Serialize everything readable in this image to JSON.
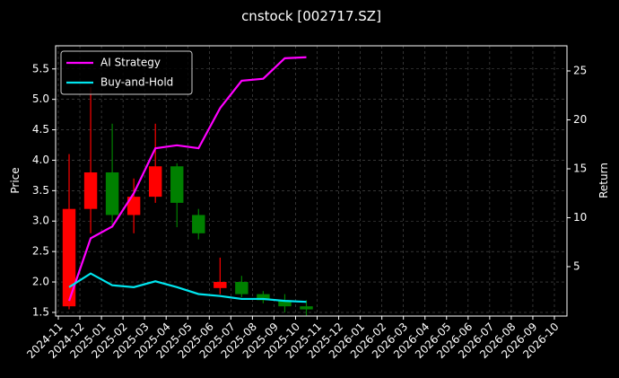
{
  "chart_data": {
    "type": "candlestick",
    "title": "cnstock [002717.SZ]",
    "ylabel": "Price",
    "y2label": "Return",
    "x": [
      "2024-11",
      "2024-12",
      "2025-01",
      "2025-02",
      "2025-03",
      "2025-04",
      "2025-05",
      "2025-06",
      "2025-07",
      "2025-08",
      "2025-09",
      "2025-10"
    ],
    "open": [
      1.6,
      3.2,
      3.8,
      3.1,
      3.4,
      3.9,
      3.1,
      1.9,
      2.0,
      1.8,
      1.7,
      1.6
    ],
    "high": [
      4.1,
      5.2,
      4.6,
      3.7,
      4.6,
      3.95,
      3.2,
      2.4,
      2.1,
      1.85,
      1.8,
      1.7
    ],
    "low": [
      1.55,
      2.8,
      2.9,
      2.8,
      3.3,
      2.9,
      2.7,
      1.8,
      1.75,
      1.65,
      1.5,
      1.45
    ],
    "close": [
      3.2,
      3.8,
      3.1,
      3.4,
      3.9,
      3.3,
      2.8,
      2.0,
      1.8,
      1.7,
      1.6,
      1.55
    ],
    "up_color": "#ff0000",
    "down_color": "#008000",
    "series": [
      {
        "name": "AI Strategy",
        "color": "#ff00ff",
        "axis": "y2",
        "values": [
          1.5,
          7.9,
          9.1,
          12.5,
          17.1,
          17.4,
          17.1,
          21.2,
          24.0,
          24.2,
          26.3,
          26.4
        ]
      },
      {
        "name": "Buy-and-Hold",
        "color": "#00e5ee",
        "axis": "y2",
        "values": [
          2.9,
          4.3,
          3.1,
          2.9,
          3.5,
          2.9,
          2.2,
          2.0,
          1.7,
          1.7,
          1.5,
          1.4
        ]
      }
    ],
    "xlim": [
      "2024-11",
      "2026-10"
    ],
    "xticks": [
      "2024-11",
      "2024-12",
      "2025-01",
      "2025-02",
      "2025-03",
      "2025-04",
      "2025-05",
      "2025-06",
      "2025-07",
      "2025-08",
      "2025-09",
      "2025-10",
      "2025-11",
      "2025-12",
      "2026-01",
      "2026-02",
      "2026-03",
      "2026-04",
      "2026-05",
      "2026-06",
      "2026-07",
      "2026-08",
      "2026-09",
      "2026-10"
    ],
    "ylim": [
      1.44,
      5.88
    ],
    "yticks": [
      1.5,
      {
        "value": 2,
        "label": "2.0"
      },
      2.5,
      {
        "value": 3,
        "label": "3.0"
      },
      3.5,
      {
        "value": 4,
        "label": "4.0"
      },
      4.5,
      {
        "value": 5,
        "label": "5.0"
      },
      5.5
    ],
    "y2lim": [
      -0.05,
      27.57
    ],
    "y2ticks": [
      5,
      10,
      15,
      20,
      25
    ],
    "grid": true,
    "legend": "upper left"
  }
}
